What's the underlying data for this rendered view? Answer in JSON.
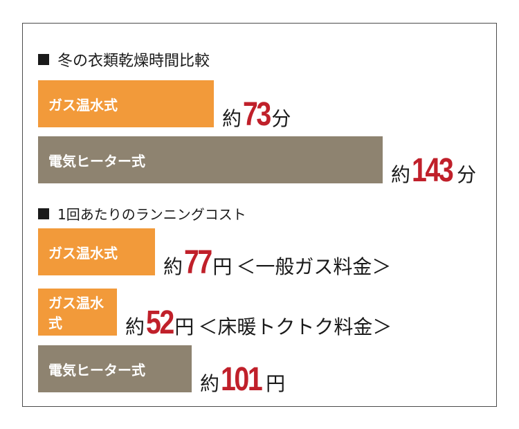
{
  "colors": {
    "orange": "#f29a3a",
    "taupe": "#8e8370",
    "red": "#c0202a",
    "text": "#1a1a1a"
  },
  "chart_data": [
    {
      "type": "bar",
      "orientation": "horizontal",
      "title": "冬の衣類乾燥時間比較",
      "categories": [
        "ガス温水式",
        "電気ヒーター式"
      ],
      "values": [
        73,
        143
      ],
      "value_labels": [
        {
          "prefix": "約",
          "number": "73",
          "unit": "分",
          "note": ""
        },
        {
          "prefix": "約",
          "number": "143",
          "unit": "分",
          "note": ""
        }
      ],
      "bar_colors": [
        "#f29a3a",
        "#8e8370"
      ],
      "xlim": [
        0,
        155
      ]
    },
    {
      "type": "bar",
      "orientation": "horizontal",
      "title": "1回あたりのランニングコスト",
      "categories": [
        "ガス温水式",
        "ガス温水式",
        "電気ヒーター式"
      ],
      "values": [
        77,
        52,
        101
      ],
      "value_labels": [
        {
          "prefix": "約",
          "number": "77",
          "unit": "円",
          "note": "＜一般ガス料金＞"
        },
        {
          "prefix": "約",
          "number": "52",
          "unit": "円",
          "note": "＜床暖トクトク料金＞"
        },
        {
          "prefix": "約",
          "number": "101",
          "unit": "円",
          "note": ""
        }
      ],
      "bar_colors": [
        "#f29a3a",
        "#f29a3a",
        "#8e8370"
      ],
      "xlim": [
        0,
        246
      ]
    }
  ]
}
